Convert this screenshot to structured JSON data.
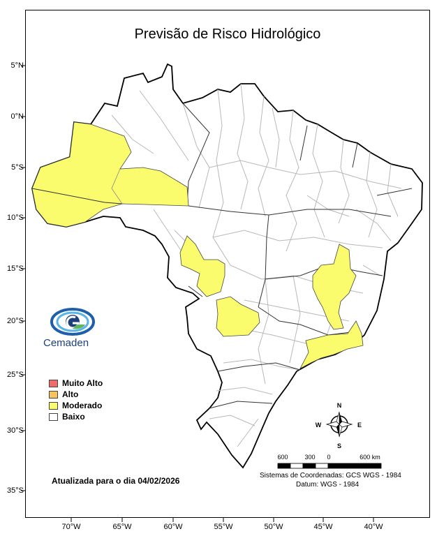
{
  "map": {
    "title": "Previsão de Risco Hidrológico",
    "lat_ticks": [
      "5°N",
      "0°N",
      "5°S",
      "10°S",
      "15°S",
      "20°S",
      "25°S",
      "30°S",
      "35°S"
    ],
    "lon_ticks": [
      "70°W",
      "65°W",
      "60°W",
      "55°W",
      "50°W",
      "45°W",
      "40°W"
    ],
    "logo_text": "Cemaden",
    "updated_text": "Atualizada para o dia 04/02/2026",
    "legend": [
      {
        "label": "Muito Alto",
        "color": "#f26b6b"
      },
      {
        "label": "Alto",
        "color": "#f7c35c"
      },
      {
        "label": "Moderado",
        "color": "#fbfb6e"
      },
      {
        "label": "Baixo",
        "color": "#ffffff"
      }
    ],
    "compass": {
      "n": "N",
      "s": "S",
      "e": "E",
      "w": "W"
    },
    "scale": {
      "labels": [
        "600",
        "300",
        "0",
        "600 km"
      ]
    },
    "crs_line1": "Sistemas de Coordenadas: GCS WGS - 1984",
    "crs_line2": "Datum: WGS - 1984"
  }
}
